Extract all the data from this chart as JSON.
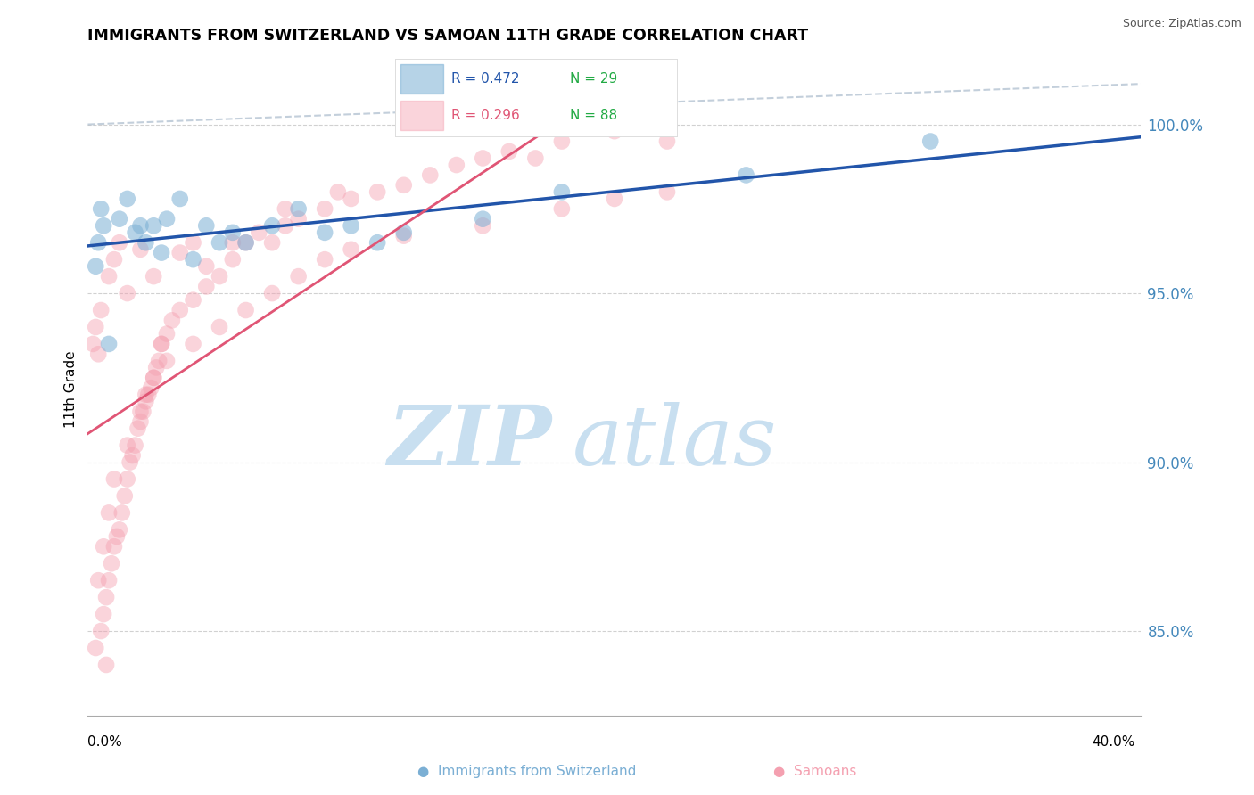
{
  "title": "IMMIGRANTS FROM SWITZERLAND VS SAMOAN 11TH GRADE CORRELATION CHART",
  "source": "Source: ZipAtlas.com",
  "ylabel": "11th Grade",
  "yticks": [
    85.0,
    90.0,
    95.0,
    100.0
  ],
  "ytick_labels": [
    "85.0%",
    "90.0%",
    "95.0%",
    "100.0%"
  ],
  "xlim": [
    0.0,
    40.0
  ],
  "ylim": [
    82.5,
    101.8
  ],
  "legend_blue_r": "R = 0.472",
  "legend_blue_n": "N = 29",
  "legend_pink_r": "R = 0.296",
  "legend_pink_n": "N = 88",
  "blue_color": "#7BAFD4",
  "pink_color": "#F4A0B0",
  "blue_line_color": "#2255AA",
  "pink_line_color": "#E05575",
  "ref_line_color": "#AABBCC",
  "watermark_zip": "ZIP",
  "watermark_atlas": "atlas",
  "watermark_color_zip": "#C8DFF0",
  "watermark_color_atlas": "#C8DFF0",
  "grid_color": "#CCCCCC",
  "blue_scatter_x": [
    0.5,
    0.4,
    1.5,
    1.8,
    2.0,
    2.2,
    2.5,
    2.8,
    3.0,
    3.5,
    4.0,
    5.0,
    6.0,
    7.0,
    8.0,
    9.0,
    10.0,
    11.0,
    12.0,
    15.0,
    18.0,
    25.0,
    32.0,
    0.8,
    0.3,
    0.6,
    1.2,
    4.5,
    5.5
  ],
  "blue_scatter_y": [
    97.5,
    96.5,
    97.8,
    96.8,
    97.0,
    96.5,
    97.0,
    96.2,
    97.2,
    97.8,
    96.0,
    96.5,
    96.5,
    97.0,
    97.5,
    96.8,
    97.0,
    96.5,
    96.8,
    97.2,
    98.0,
    98.5,
    99.5,
    93.5,
    95.8,
    97.0,
    97.2,
    97.0,
    96.8
  ],
  "pink_scatter_x": [
    0.2,
    0.3,
    0.4,
    0.5,
    0.5,
    0.6,
    0.7,
    0.8,
    0.8,
    0.9,
    1.0,
    1.0,
    1.1,
    1.2,
    1.2,
    1.3,
    1.4,
    1.5,
    1.5,
    1.6,
    1.7,
    1.8,
    1.9,
    2.0,
    2.0,
    2.1,
    2.2,
    2.3,
    2.4,
    2.5,
    2.5,
    2.6,
    2.7,
    2.8,
    3.0,
    3.2,
    3.5,
    3.5,
    4.0,
    4.0,
    4.5,
    5.0,
    5.5,
    6.0,
    6.5,
    7.0,
    7.5,
    8.0,
    9.0,
    10.0,
    11.0,
    12.0,
    13.0,
    14.0,
    15.0,
    16.0,
    17.0,
    18.0,
    20.0,
    22.0,
    0.4,
    0.6,
    0.8,
    1.0,
    1.5,
    2.0,
    2.5,
    3.0,
    4.0,
    5.0,
    6.0,
    7.0,
    8.0,
    9.0,
    10.0,
    12.0,
    15.0,
    18.0,
    20.0,
    22.0,
    2.2,
    2.8,
    4.5,
    5.5,
    7.5,
    9.5,
    0.3,
    0.7
  ],
  "pink_scatter_y": [
    93.5,
    94.0,
    93.2,
    94.5,
    85.0,
    85.5,
    86.0,
    86.5,
    95.5,
    87.0,
    87.5,
    96.0,
    87.8,
    88.0,
    96.5,
    88.5,
    89.0,
    89.5,
    95.0,
    90.0,
    90.2,
    90.5,
    91.0,
    91.2,
    96.3,
    91.5,
    91.8,
    92.0,
    92.2,
    92.5,
    95.5,
    92.8,
    93.0,
    93.5,
    93.8,
    94.2,
    94.5,
    96.2,
    94.8,
    96.5,
    95.2,
    95.5,
    96.0,
    96.5,
    96.8,
    96.5,
    97.0,
    97.2,
    97.5,
    97.8,
    98.0,
    98.2,
    98.5,
    98.8,
    99.0,
    99.2,
    99.0,
    99.5,
    99.8,
    99.5,
    86.5,
    87.5,
    88.5,
    89.5,
    90.5,
    91.5,
    92.5,
    93.0,
    93.5,
    94.0,
    94.5,
    95.0,
    95.5,
    96.0,
    96.3,
    96.7,
    97.0,
    97.5,
    97.8,
    98.0,
    92.0,
    93.5,
    95.8,
    96.5,
    97.5,
    98.0,
    84.5,
    84.0
  ]
}
